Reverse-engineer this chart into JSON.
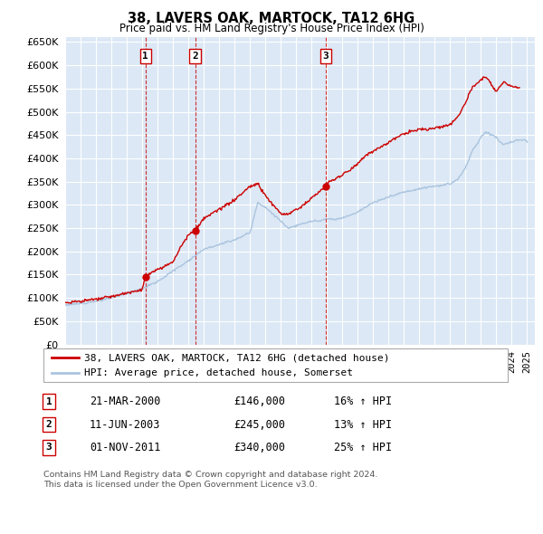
{
  "title": "38, LAVERS OAK, MARTOCK, TA12 6HG",
  "subtitle": "Price paid vs. HM Land Registry's House Price Index (HPI)",
  "legend_line1": "38, LAVERS OAK, MARTOCK, TA12 6HG (detached house)",
  "legend_line2": "HPI: Average price, detached house, Somerset",
  "footer_line1": "Contains HM Land Registry data © Crown copyright and database right 2024.",
  "footer_line2": "This data is licensed under the Open Government Licence v3.0.",
  "transactions": [
    {
      "num": 1,
      "date": "21-MAR-2000",
      "price": 146000,
      "hpi_diff": "16% ↑ HPI",
      "year": 2000.22
    },
    {
      "num": 2,
      "date": "11-JUN-2003",
      "price": 245000,
      "hpi_diff": "13% ↑ HPI",
      "year": 2003.44
    },
    {
      "num": 3,
      "date": "01-NOV-2011",
      "price": 340000,
      "hpi_diff": "25% ↑ HPI",
      "year": 2011.92
    }
  ],
  "hpi_color": "#aac4df",
  "price_color": "#cc0000",
  "plot_bg": "#dce8f5",
  "grid_color": "#ffffff",
  "ylim": [
    0,
    660000
  ],
  "yticks": [
    0,
    50000,
    100000,
    150000,
    200000,
    250000,
    300000,
    350000,
    400000,
    450000,
    500000,
    550000,
    600000,
    650000
  ],
  "xlim_start": 1995,
  "xlim_end": 2025.5
}
